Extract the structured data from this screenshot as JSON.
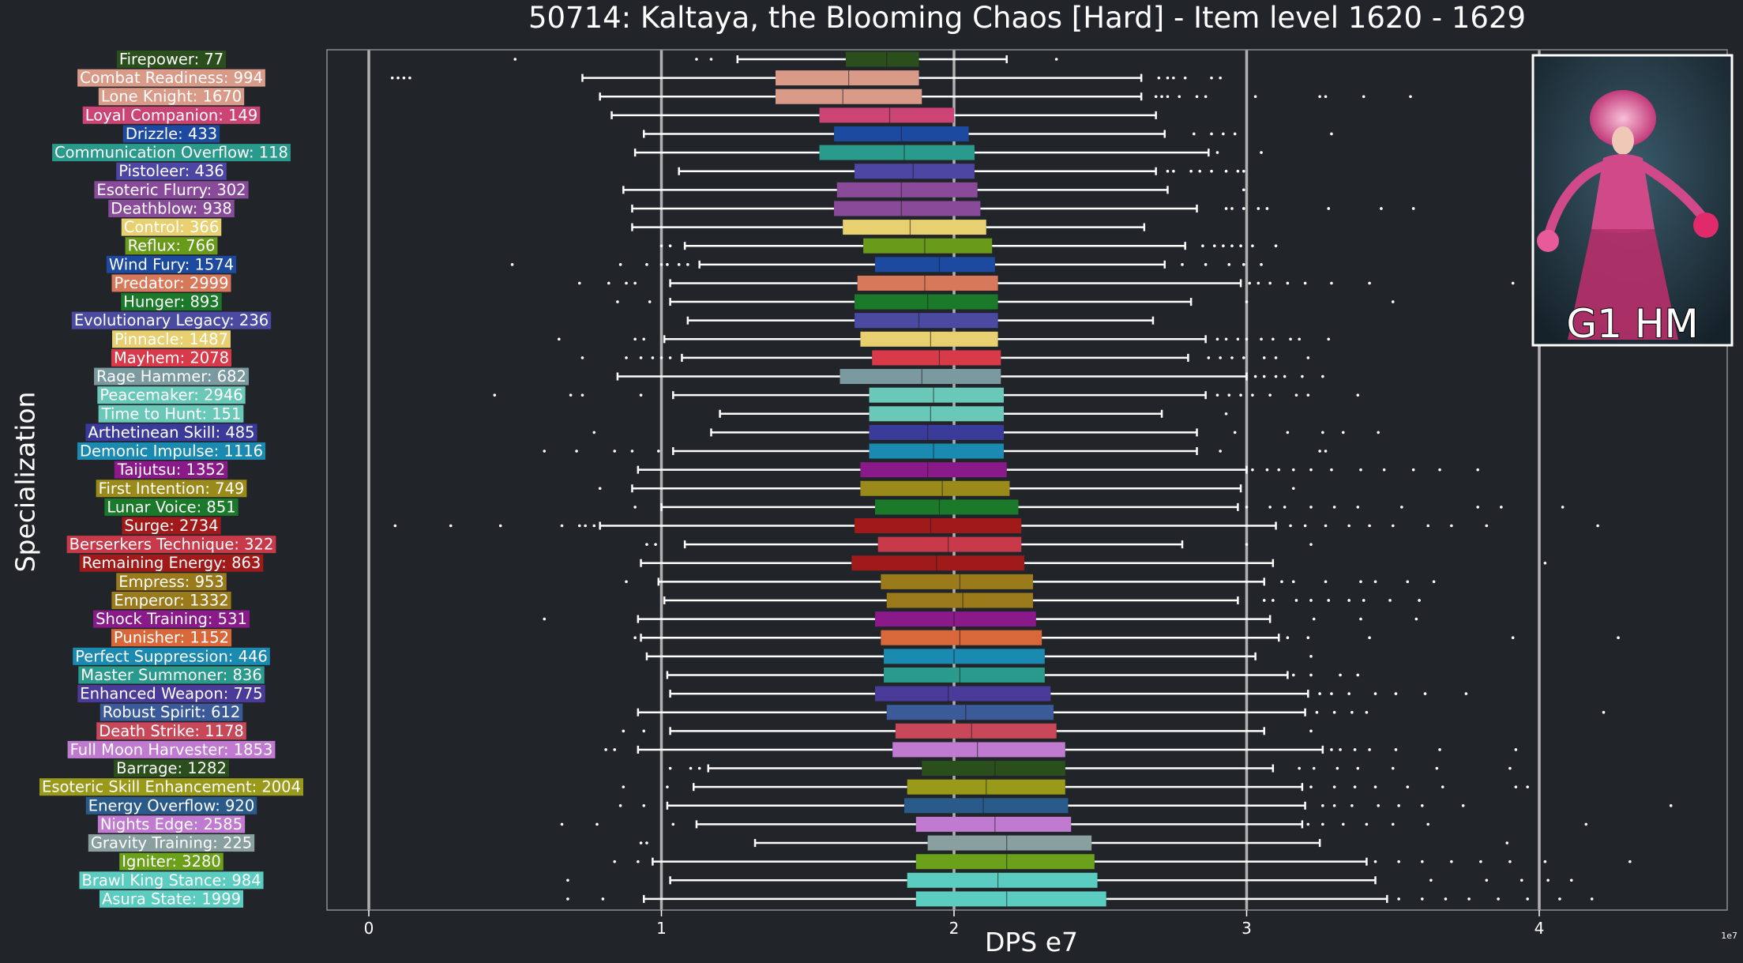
{
  "chart_data": {
    "type": "boxplot",
    "title": "50714: Kaltaya, the Blooming Chaos [Hard] - Item level 1620 - 1629",
    "xlabel": "DPS e7",
    "ylabel": "Specialization",
    "x_offset_label": "1e7",
    "xlim": [
      -0.14,
      4.62
    ],
    "x_ticks": [
      0,
      1,
      2,
      3,
      4
    ],
    "x_tick_labels": [
      "0",
      "1",
      "2",
      "3",
      "4"
    ],
    "grid": "vertical lines at x ticks",
    "inset": {
      "caption": "G1 HM"
    },
    "series": [
      {
        "name": "Firepower: 77",
        "color": "#2a4f1c",
        "whisker_low": 1.26,
        "q1": 1.63,
        "median": 1.77,
        "q3": 1.88,
        "whisker_high": 2.18,
        "outliers": [
          0.5,
          1.12,
          1.17,
          2.35
        ]
      },
      {
        "name": "Combat Readiness: 994",
        "color": "#d99a88",
        "whisker_low": 0.73,
        "q1": 1.39,
        "median": 1.64,
        "q3": 1.88,
        "whisker_high": 2.64,
        "outliers": [
          0.08,
          0.1,
          0.12,
          0.14,
          2.7,
          2.73,
          2.75,
          2.79,
          2.88,
          2.91
        ]
      },
      {
        "name": "Lone Knight: 1670",
        "color": "#d99a88",
        "whisker_low": 0.79,
        "q1": 1.39,
        "median": 1.62,
        "q3": 1.89,
        "whisker_high": 2.64,
        "outliers": [
          2.69,
          2.71,
          2.73,
          2.77,
          2.83,
          2.86,
          3.03,
          3.25,
          3.27,
          3.4,
          3.56
        ]
      },
      {
        "name": "Loyal Companion: 149",
        "color": "#cc4474",
        "whisker_low": 0.83,
        "q1": 1.54,
        "median": 1.78,
        "q3": 2.0,
        "whisker_high": 2.69,
        "outliers": []
      },
      {
        "name": "Drizzle: 433",
        "color": "#1b4aa0",
        "whisker_low": 0.94,
        "q1": 1.59,
        "median": 1.82,
        "q3": 2.05,
        "whisker_high": 2.72,
        "outliers": [
          2.82,
          2.88,
          2.92,
          2.96,
          3.29
        ]
      },
      {
        "name": "Communication Overflow: 118",
        "color": "#2a9a8c",
        "whisker_low": 0.91,
        "q1": 1.54,
        "median": 1.83,
        "q3": 2.07,
        "whisker_high": 2.87,
        "outliers": [
          2.9,
          3.05
        ]
      },
      {
        "name": "Pistoleer: 436",
        "color": "#4d46a3",
        "whisker_low": 1.06,
        "q1": 1.66,
        "median": 1.86,
        "q3": 2.07,
        "whisker_high": 2.69,
        "outliers": [
          2.73,
          2.75,
          2.81,
          2.84,
          2.88,
          2.93,
          2.97,
          2.99
        ]
      },
      {
        "name": "Esoteric Flurry: 302",
        "color": "#8a4a9a",
        "whisker_low": 0.87,
        "q1": 1.6,
        "median": 1.82,
        "q3": 2.08,
        "whisker_high": 2.73,
        "outliers": [
          2.99
        ]
      },
      {
        "name": "Deathblow: 938",
        "color": "#8a4a9a",
        "whisker_low": 0.9,
        "q1": 1.59,
        "median": 1.82,
        "q3": 2.09,
        "whisker_high": 2.83,
        "outliers": [
          2.93,
          2.95,
          2.99,
          3.04,
          3.07,
          3.28,
          3.46,
          3.57
        ]
      },
      {
        "name": "Control: 366",
        "color": "#e8d070",
        "whisker_low": 0.9,
        "q1": 1.62,
        "median": 1.85,
        "q3": 2.11,
        "whisker_high": 2.65,
        "outliers": []
      },
      {
        "name": "Reflux: 766",
        "color": "#6a9a1a",
        "whisker_low": 1.08,
        "q1": 1.69,
        "median": 1.9,
        "q3": 2.13,
        "whisker_high": 2.79,
        "outliers": [
          1.0,
          1.03,
          2.85,
          2.89,
          2.92,
          2.95,
          2.98,
          3.02,
          3.1
        ]
      },
      {
        "name": "Wind Fury: 1574",
        "color": "#1b4aa0",
        "whisker_low": 1.13,
        "q1": 1.73,
        "median": 1.95,
        "q3": 2.14,
        "whisker_high": 2.72,
        "outliers": [
          0.49,
          0.86,
          0.95,
          1.0,
          1.02,
          1.06,
          1.09,
          2.78,
          2.86,
          2.94,
          2.99,
          3.05
        ]
      },
      {
        "name": "Predator: 2999",
        "color": "#d8785a",
        "whisker_low": 1.03,
        "q1": 1.67,
        "median": 1.9,
        "q3": 2.15,
        "whisker_high": 2.98,
        "outliers": [
          0.72,
          0.82,
          0.88,
          0.91,
          3.01,
          3.04,
          3.08,
          3.14,
          3.2,
          3.29,
          3.42,
          3.91
        ]
      },
      {
        "name": "Hunger: 893",
        "color": "#1a7a2a",
        "whisker_low": 1.03,
        "q1": 1.66,
        "median": 1.91,
        "q3": 2.15,
        "whisker_high": 2.81,
        "outliers": [
          0.85,
          0.96,
          3.0,
          3.5
        ]
      },
      {
        "name": "Evolutionary Legacy: 236",
        "color": "#4a4aa0",
        "whisker_low": 1.09,
        "q1": 1.66,
        "median": 1.88,
        "q3": 2.15,
        "whisker_high": 2.68,
        "outliers": []
      },
      {
        "name": "Pinnacle: 1487",
        "color": "#e8d070",
        "whisker_low": 1.01,
        "q1": 1.68,
        "median": 1.92,
        "q3": 2.15,
        "whisker_high": 2.86,
        "outliers": [
          0.65,
          0.91,
          0.94,
          2.9,
          2.93,
          2.97,
          3.0,
          3.05,
          3.09,
          3.15,
          3.18,
          3.28
        ]
      },
      {
        "name": "Mayhem: 2078",
        "color": "#d83a4a",
        "whisker_low": 1.07,
        "q1": 1.72,
        "median": 1.95,
        "q3": 2.16,
        "whisker_high": 2.8,
        "outliers": [
          0.73,
          0.88,
          0.93,
          0.97,
          1.0,
          1.03,
          2.87,
          2.91,
          2.95,
          2.99,
          3.06,
          3.1,
          3.21
        ]
      },
      {
        "name": "Rage Hammer: 682",
        "color": "#7a9aa0",
        "whisker_low": 0.85,
        "q1": 1.61,
        "median": 1.89,
        "q3": 2.16,
        "whisker_high": 3.0,
        "outliers": [
          3.03,
          3.06,
          3.1,
          3.13,
          3.19,
          3.26
        ]
      },
      {
        "name": "Peacemaker: 2946",
        "color": "#6ac8b8",
        "whisker_low": 1.04,
        "q1": 1.71,
        "median": 1.93,
        "q3": 2.17,
        "whisker_high": 2.86,
        "outliers": [
          0.43,
          0.69,
          0.73,
          0.93,
          2.9,
          2.94,
          2.98,
          3.02,
          3.08,
          3.17,
          3.21,
          3.38
        ]
      },
      {
        "name": "Time to Hunt: 151",
        "color": "#6ac8b8",
        "whisker_low": 1.2,
        "q1": 1.71,
        "median": 1.92,
        "q3": 2.17,
        "whisker_high": 2.71,
        "outliers": [
          2.93
        ]
      },
      {
        "name": "Arthetinean Skill: 485",
        "color": "#3a3a9a",
        "whisker_low": 1.17,
        "q1": 1.71,
        "median": 1.91,
        "q3": 2.17,
        "whisker_high": 2.83,
        "outliers": [
          0.77,
          2.96,
          3.14,
          3.26,
          3.33,
          3.45
        ]
      },
      {
        "name": "Demonic Impulse: 1116",
        "color": "#1a8ab0",
        "whisker_low": 1.04,
        "q1": 1.71,
        "median": 1.93,
        "q3": 2.17,
        "whisker_high": 2.83,
        "outliers": [
          0.6,
          0.71,
          0.84,
          0.9,
          0.99,
          2.91,
          3.25,
          3.27
        ]
      },
      {
        "name": "Taijutsu: 1352",
        "color": "#8a1a8a",
        "whisker_low": 0.92,
        "q1": 1.68,
        "median": 1.91,
        "q3": 2.18,
        "whisker_high": 3.0,
        "outliers": [
          3.02,
          3.07,
          3.11,
          3.16,
          3.22,
          3.29,
          3.39,
          3.47,
          3.57,
          3.66,
          3.79
        ]
      },
      {
        "name": "First Intention: 749",
        "color": "#9a8a1a",
        "whisker_low": 0.9,
        "q1": 1.68,
        "median": 1.96,
        "q3": 2.19,
        "whisker_high": 2.98,
        "outliers": [
          0.79,
          3.16
        ]
      },
      {
        "name": "Lunar Voice: 851",
        "color": "#1a7a2a",
        "whisker_low": 1.0,
        "q1": 1.73,
        "median": 1.95,
        "q3": 2.22,
        "whisker_high": 2.97,
        "outliers": [
          0.91,
          3.0,
          3.08,
          3.13,
          3.22,
          3.3,
          3.38,
          3.53,
          3.79,
          3.87,
          4.08
        ]
      },
      {
        "name": "Surge: 2734",
        "color": "#a01a1a",
        "whisker_low": 0.79,
        "q1": 1.66,
        "median": 1.92,
        "q3": 2.23,
        "whisker_high": 3.1,
        "outliers": [
          0.09,
          0.28,
          0.45,
          0.66,
          0.72,
          0.74,
          0.77,
          3.15,
          3.2,
          3.27,
          3.35,
          3.42,
          3.5,
          3.62,
          3.7,
          3.82,
          4.2
        ]
      },
      {
        "name": "Berserkers Technique: 322",
        "color": "#c83a4a",
        "whisker_low": 1.08,
        "q1": 1.74,
        "median": 1.98,
        "q3": 2.23,
        "whisker_high": 2.78,
        "outliers": [
          0.95,
          0.98,
          3.0,
          3.22
        ]
      },
      {
        "name": "Remaining Energy: 863",
        "color": "#a01a1a",
        "whisker_low": 0.93,
        "q1": 1.65,
        "median": 1.94,
        "q3": 2.24,
        "whisker_high": 3.09,
        "outliers": [
          4.02
        ]
      },
      {
        "name": "Empress: 953",
        "color": "#9a7a1a",
        "whisker_low": 0.99,
        "q1": 1.75,
        "median": 2.02,
        "q3": 2.27,
        "whisker_high": 3.06,
        "outliers": [
          0.88,
          3.12,
          3.16,
          3.27,
          3.39,
          3.44,
          3.55,
          3.64
        ]
      },
      {
        "name": "Emperor: 1332",
        "color": "#9a7a1a",
        "whisker_low": 1.01,
        "q1": 1.77,
        "median": 2.03,
        "q3": 2.27,
        "whisker_high": 2.97,
        "outliers": [
          3.06,
          3.09,
          3.17,
          3.22,
          3.28,
          3.35,
          3.4,
          3.49,
          3.59
        ]
      },
      {
        "name": "Shock Training: 531",
        "color": "#8a1a8a",
        "whisker_low": 0.92,
        "q1": 1.73,
        "median": 2.0,
        "q3": 2.28,
        "whisker_high": 3.08,
        "outliers": [
          0.6,
          3.23,
          3.39,
          3.58
        ]
      },
      {
        "name": "Punisher: 1152",
        "color": "#d8683a",
        "whisker_low": 0.93,
        "q1": 1.75,
        "median": 2.02,
        "q3": 2.3,
        "whisker_high": 3.11,
        "outliers": [
          0.91,
          3.14,
          3.21,
          3.42,
          3.91,
          4.27
        ]
      },
      {
        "name": "Perfect Suppression: 446",
        "color": "#1a8ab0",
        "whisker_low": 0.95,
        "q1": 1.76,
        "median": 2.0,
        "q3": 2.31,
        "whisker_high": 3.03,
        "outliers": [
          3.22
        ]
      },
      {
        "name": "Master Summoner: 836",
        "color": "#2a9a8c",
        "whisker_low": 1.02,
        "q1": 1.76,
        "median": 2.02,
        "q3": 2.31,
        "whisker_high": 3.14,
        "outliers": [
          3.16,
          3.22,
          3.32,
          3.38
        ]
      },
      {
        "name": "Enhanced Weapon: 775",
        "color": "#4a3a9a",
        "whisker_low": 1.03,
        "q1": 1.73,
        "median": 1.98,
        "q3": 2.33,
        "whisker_high": 3.21,
        "outliers": [
          3.25,
          3.29,
          3.35,
          3.44,
          3.51,
          3.61,
          3.75
        ]
      },
      {
        "name": "Robust Spirit: 612",
        "color": "#3a5a9a",
        "whisker_low": 0.92,
        "q1": 1.77,
        "median": 2.04,
        "q3": 2.34,
        "whisker_high": 3.2,
        "outliers": [
          3.24,
          3.3,
          3.36,
          3.41,
          4.22
        ]
      },
      {
        "name": "Death Strike: 1178",
        "color": "#c8485a",
        "whisker_low": 1.03,
        "q1": 1.8,
        "median": 2.06,
        "q3": 2.35,
        "whisker_high": 3.06,
        "outliers": [
          0.87,
          0.94,
          3.22
        ]
      },
      {
        "name": "Full Moon Harvester: 1853",
        "color": "#c07ad0",
        "whisker_low": 0.92,
        "q1": 1.79,
        "median": 2.08,
        "q3": 2.38,
        "whisker_high": 3.26,
        "outliers": [
          0.81,
          0.84,
          3.29,
          3.32,
          3.37,
          3.42,
          3.51,
          3.66,
          3.92
        ]
      },
      {
        "name": "Barrage: 1282",
        "color": "#2a4f1c",
        "whisker_low": 1.16,
        "q1": 1.89,
        "median": 2.14,
        "q3": 2.38,
        "whisker_high": 3.09,
        "outliers": [
          1.03,
          1.1,
          1.13,
          3.18,
          3.23,
          3.31,
          3.38,
          3.5,
          3.65,
          3.9
        ]
      },
      {
        "name": "Esoteric Skill Enhancement: 2004",
        "color": "#9a9a1a",
        "whisker_low": 1.11,
        "q1": 1.84,
        "median": 2.11,
        "q3": 2.38,
        "whisker_high": 3.19,
        "outliers": [
          0.87,
          1.02,
          3.22,
          3.3,
          3.37,
          3.44,
          3.55,
          3.67,
          3.92,
          3.96
        ]
      },
      {
        "name": "Energy Overflow: 920",
        "color": "#2a5a8a",
        "whisker_low": 1.02,
        "q1": 1.83,
        "median": 2.1,
        "q3": 2.39,
        "whisker_high": 3.2,
        "outliers": [
          0.86,
          0.94,
          3.26,
          3.3,
          3.36,
          3.45,
          3.52,
          3.6,
          3.74,
          4.45
        ]
      },
      {
        "name": "Nights Edge: 2585",
        "color": "#c07ad0",
        "whisker_low": 1.12,
        "q1": 1.87,
        "median": 2.14,
        "q3": 2.4,
        "whisker_high": 3.19,
        "outliers": [
          0.66,
          0.78,
          1.04,
          3.21,
          3.26,
          3.33,
          3.41,
          3.5,
          3.62,
          4.16
        ]
      },
      {
        "name": "Gravity Training: 225",
        "color": "#8aa0a0",
        "whisker_low": 1.32,
        "q1": 1.91,
        "median": 2.18,
        "q3": 2.47,
        "whisker_high": 3.25,
        "outliers": [
          0.93,
          0.95,
          3.89
        ]
      },
      {
        "name": "Igniter: 3280",
        "color": "#6aa01a",
        "whisker_low": 0.97,
        "q1": 1.87,
        "median": 2.18,
        "q3": 2.48,
        "whisker_high": 3.41,
        "outliers": [
          0.84,
          0.92,
          3.44,
          3.52,
          3.6,
          3.7,
          3.8,
          3.9,
          4.02,
          4.31
        ]
      },
      {
        "name": "Brawl King Stance: 984",
        "color": "#5acdc0",
        "whisker_low": 1.03,
        "q1": 1.84,
        "median": 2.15,
        "q3": 2.49,
        "whisker_high": 3.44,
        "outliers": [
          0.68,
          3.63,
          3.82,
          3.94,
          4.03,
          4.11
        ]
      },
      {
        "name": "Asura State: 1999",
        "color": "#5acdc0",
        "whisker_low": 0.94,
        "q1": 1.87,
        "median": 2.18,
        "q3": 2.52,
        "whisker_high": 3.48,
        "outliers": [
          0.68,
          0.8,
          3.52,
          3.6,
          3.68,
          3.76,
          3.86,
          3.96,
          4.07,
          4.18
        ]
      }
    ]
  }
}
